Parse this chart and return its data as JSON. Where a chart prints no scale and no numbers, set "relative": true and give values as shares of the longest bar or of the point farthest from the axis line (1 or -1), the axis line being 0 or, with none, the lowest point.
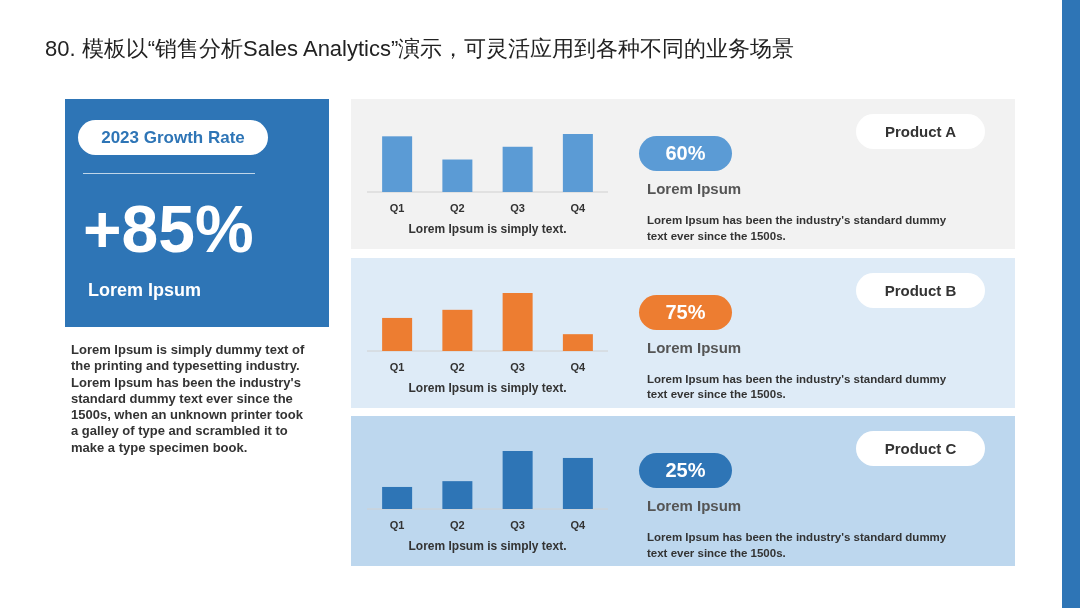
{
  "chart_data": [
    {
      "type": "other",
      "title": "80. 模板以“销售分析Sales Analytics”演示，可灵活应用到各种不同的业务场景",
      "subtitle": "2023 Growth Rate",
      "annotations": [
        "+85%",
        "Lorem Ipsum",
        "Lorem Ipsum is simply dummy text of the printing and typesetting industry. Lorem Ipsum has been the industry's standard dummy text ever since the 1500s, when an unknown printer took a galley of type and scrambled it to make a type specimen book."
      ]
    },
    {
      "type": "bar",
      "categories": [
        "Q1",
        "Q2",
        "Q3",
        "Q4"
      ],
      "values": [
        0.96,
        0.56,
        0.78,
        1
      ],
      "color": "#5b9bd5",
      "relative": true,
      "xlabel": "Lorem Ipsum is simply text.",
      "annotations": [
        "Product A",
        "60%",
        "Lorem Ipsum",
        "Lorem Ipsum has been the industry's standard dummy text ever since the 1500s."
      ]
    },
    {
      "type": "bar",
      "categories": [
        "Q1",
        "Q2",
        "Q3",
        "Q4"
      ],
      "values": [
        0.57,
        0.71,
        1,
        0.29
      ],
      "color": "#ed7d31",
      "relative": true,
      "xlabel": "Lorem Ipsum is simply text.",
      "annotations": [
        "Product B",
        "75%",
        "Lorem Ipsum",
        "Lorem Ipsum has been the industry's standard dummy text ever since the 1500s."
      ]
    },
    {
      "type": "bar",
      "categories": [
        "Q1",
        "Q2",
        "Q3",
        "Q4"
      ],
      "values": [
        0.38,
        0.48,
        1,
        0.88
      ],
      "color": "#2e75b6",
      "relative": true,
      "xlabel": "Lorem Ipsum is simply text.",
      "annotations": [
        "Product C",
        "25%",
        "Lorem Ipsum",
        "Lorem Ipsum has been the industry's standard dummy text ever since the 1500s."
      ]
    }
  ]
}
